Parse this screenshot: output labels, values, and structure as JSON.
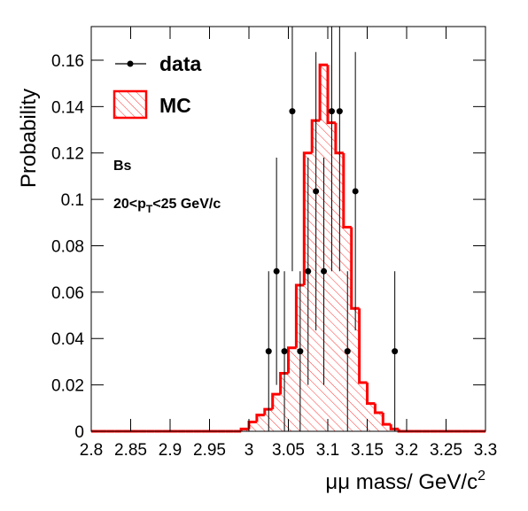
{
  "chart_data": {
    "type": "histogram",
    "y_label": "Probability",
    "x_label": [
      "μμ mass/ GeV/c",
      "2"
    ],
    "annotations": [
      "Bs",
      [
        "20<p",
        "T",
        "<25 GeV/c"
      ]
    ],
    "bins": [
      2.8,
      2.81,
      2.82,
      2.83,
      2.84,
      2.85,
      2.86,
      2.87,
      2.88,
      2.89,
      2.9,
      2.91,
      2.92,
      2.93,
      2.94,
      2.95,
      2.96,
      2.97,
      2.98,
      2.99,
      3.0,
      3.01,
      3.02,
      3.03,
      3.04,
      3.05,
      3.06,
      3.07,
      3.08,
      3.09,
      3.1,
      3.11,
      3.12,
      3.13,
      3.14,
      3.15,
      3.16,
      3.17,
      3.18,
      3.19,
      3.2,
      3.21,
      3.22,
      3.23,
      3.24,
      3.25,
      3.26,
      3.27,
      3.28,
      3.29,
      3.3
    ],
    "series": [
      {
        "name": "MC",
        "color": "#ff0000",
        "values": [
          0,
          0,
          0,
          0,
          0,
          0,
          0,
          0,
          0,
          0,
          0,
          0,
          0,
          0,
          0,
          0,
          0,
          0,
          0,
          0.001,
          0.004,
          0.007,
          0.0095,
          0.016,
          0.025,
          0.036,
          0.063,
          0.12,
          0.134,
          0.158,
          0.133,
          0.12,
          0.088,
          0.053,
          0.021,
          0.012,
          0.008,
          0.003,
          0.001,
          0,
          0,
          0,
          0,
          0,
          0,
          0,
          0,
          0,
          0,
          0
        ]
      },
      {
        "name": "data",
        "color": "#000000",
        "x": [
          3.025,
          3.035,
          3.045,
          3.055,
          3.065,
          3.075,
          3.085,
          3.095,
          3.105,
          3.115,
          3.125,
          3.135,
          3.185
        ],
        "values": [
          0.0345,
          0.069,
          0.0345,
          0.138,
          0.0345,
          0.069,
          0.1035,
          0.069,
          0.138,
          0.138,
          0.0345,
          0.1035,
          0.0345
        ],
        "errors": [
          0.0345,
          0.049,
          0.0345,
          0.069,
          0.0345,
          0.049,
          0.06,
          0.049,
          0.069,
          0.069,
          0.0345,
          0.06,
          0.0345
        ]
      }
    ],
    "xlim": [
      2.8,
      3.3
    ],
    "ylim": [
      0,
      0.1745
    ],
    "xticks": [
      2.8,
      2.85,
      2.9,
      2.95,
      3,
      3.05,
      3.1,
      3.15,
      3.2,
      3.25,
      3.3
    ],
    "yticks": [
      0,
      0.02,
      0.04,
      0.06,
      0.08,
      0.1,
      0.12,
      0.14,
      0.16
    ]
  }
}
